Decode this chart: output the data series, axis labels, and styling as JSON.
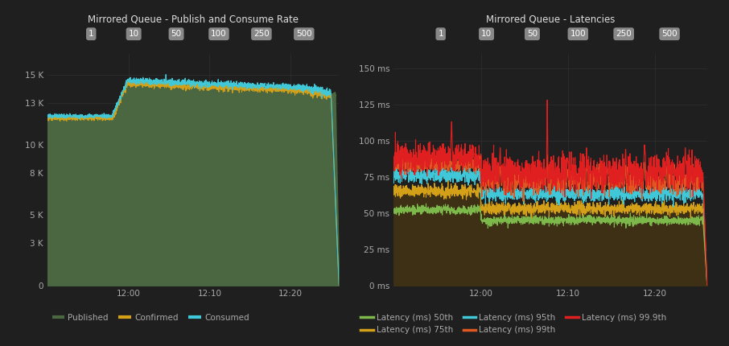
{
  "bg_color": "#1f1f1f",
  "plot_bg_color": "#1f1f1f",
  "grid_color": "#333333",
  "text_color": "#aaaaaa",
  "title_color": "#dddddd",
  "left_title": "Mirrored Queue - Publish and Consume Rate",
  "left_yticks": [
    0,
    3000,
    5000,
    8000,
    10000,
    13000,
    15000
  ],
  "left_ytick_labels": [
    "0",
    "3 K",
    "5 K",
    "8 K",
    "10 K",
    "13 K",
    "15 K"
  ],
  "left_ylim": [
    0,
    16500
  ],
  "left_xtick_labels": [
    "12:00",
    "12:10",
    "12:20"
  ],
  "left_fill_color": "#4a6741",
  "left_confirmed_color": "#d4a017",
  "left_consumed_color": "#40c8d8",
  "right_title": "Mirrored Queue - Latencies",
  "right_yticks": [
    0,
    25,
    50,
    75,
    100,
    125,
    150
  ],
  "right_ytick_labels": [
    "0 ms",
    "25 ms",
    "50 ms",
    "75 ms",
    "100 ms",
    "125 ms",
    "150 ms"
  ],
  "right_ylim": [
    0,
    160
  ],
  "right_xtick_labels": [
    "12:00",
    "12:10",
    "12:20"
  ],
  "right_fill_color": "#3d3015",
  "lat50_color": "#7db84a",
  "lat75_color": "#d4a017",
  "lat95_color": "#40c8d8",
  "lat99_color": "#e05820",
  "lat999_color": "#e02020",
  "pill_bg": "#888888",
  "pill_text": "#ffffff",
  "pill_labels": [
    "1",
    "10",
    "50",
    "100",
    "250",
    "500"
  ]
}
